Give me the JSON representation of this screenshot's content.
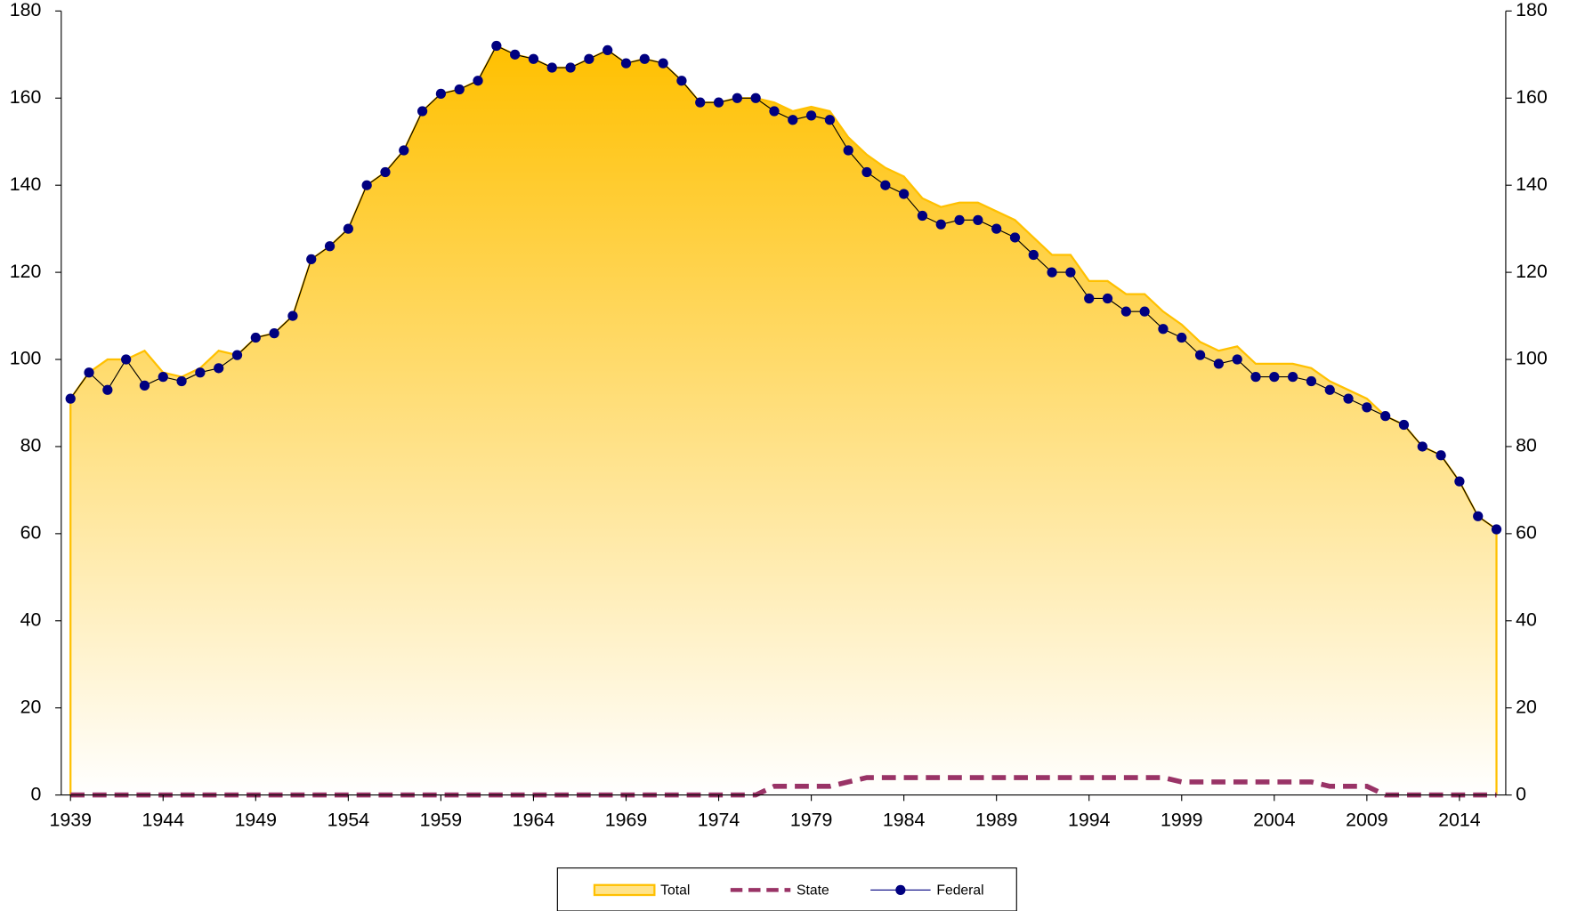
{
  "chart_data": {
    "type": "line",
    "x": [
      1939,
      1940,
      1941,
      1942,
      1943,
      1944,
      1945,
      1946,
      1947,
      1948,
      1949,
      1950,
      1951,
      1952,
      1953,
      1954,
      1955,
      1956,
      1957,
      1958,
      1959,
      1960,
      1961,
      1962,
      1963,
      1964,
      1965,
      1966,
      1967,
      1968,
      1969,
      1970,
      1971,
      1972,
      1973,
      1974,
      1975,
      1976,
      1977,
      1978,
      1979,
      1980,
      1981,
      1982,
      1983,
      1984,
      1985,
      1986,
      1987,
      1988,
      1989,
      1990,
      1991,
      1992,
      1993,
      1994,
      1995,
      1996,
      1997,
      1998,
      1999,
      2000,
      2001,
      2002,
      2003,
      2004,
      2005,
      2006,
      2007,
      2008,
      2009,
      2010,
      2011,
      2012,
      2013,
      2014,
      2015,
      2016
    ],
    "xlim": [
      1938.5,
      2016.5
    ],
    "xticks": [
      1939,
      1944,
      1949,
      1954,
      1959,
      1964,
      1969,
      1974,
      1979,
      1984,
      1989,
      1994,
      1999,
      2004,
      2009,
      2014
    ],
    "ylim": [
      0,
      180
    ],
    "yticks": [
      0,
      20,
      40,
      60,
      80,
      100,
      120,
      140,
      160,
      180
    ],
    "y2lim": [
      0,
      180
    ],
    "y2ticks": [
      0,
      20,
      40,
      60,
      80,
      100,
      120,
      140,
      160,
      180
    ],
    "legend": "bottom",
    "series": [
      {
        "name": "Total",
        "color": "#FFC000",
        "kind": "area",
        "values": [
          91,
          97,
          100,
          100,
          102,
          97,
          96,
          98,
          102,
          101,
          105,
          106,
          110,
          123,
          126,
          130,
          140,
          143,
          148,
          157,
          161,
          162,
          164,
          172,
          170,
          169,
          167,
          167,
          169,
          171,
          168,
          169,
          168,
          164,
          159,
          159,
          160,
          160,
          159,
          157,
          158,
          157,
          151,
          147,
          144,
          142,
          137,
          135,
          136,
          136,
          134,
          132,
          128,
          124,
          124,
          118,
          118,
          115,
          115,
          111,
          108,
          104,
          102,
          103,
          99,
          99,
          99,
          98,
          95,
          93,
          91,
          87,
          85,
          80,
          78,
          72,
          64,
          61
        ]
      },
      {
        "name": "State",
        "color": "#993366",
        "kind": "dashed",
        "values": [
          0,
          0,
          0,
          0,
          0,
          0,
          0,
          0,
          0,
          0,
          0,
          0,
          0,
          0,
          0,
          0,
          0,
          0,
          0,
          0,
          0,
          0,
          0,
          0,
          0,
          0,
          0,
          0,
          0,
          0,
          0,
          0,
          0,
          0,
          0,
          0,
          0,
          0,
          2,
          2,
          2,
          2,
          3,
          4,
          4,
          4,
          4,
          4,
          4,
          4,
          4,
          4,
          4,
          4,
          4,
          4,
          4,
          4,
          4,
          4,
          3,
          3,
          3,
          3,
          3,
          3,
          3,
          3,
          2,
          2,
          2,
          0,
          0,
          0,
          0,
          0,
          0,
          0
        ]
      },
      {
        "name": "Federal",
        "color": "#000080",
        "kind": "markers",
        "values": [
          91,
          97,
          93,
          100,
          94,
          96,
          95,
          97,
          98,
          101,
          105,
          106,
          110,
          123,
          126,
          130,
          140,
          143,
          148,
          157,
          161,
          162,
          164,
          172,
          170,
          169,
          167,
          167,
          169,
          171,
          168,
          169,
          168,
          164,
          159,
          159,
          160,
          160,
          157,
          155,
          156,
          155,
          148,
          143,
          140,
          138,
          133,
          131,
          132,
          132,
          130,
          128,
          124,
          120,
          120,
          114,
          114,
          111,
          111,
          107,
          105,
          101,
          99,
          100,
          96,
          96,
          96,
          95,
          93,
          91,
          89,
          87,
          85,
          80,
          78,
          72,
          64,
          61
        ]
      }
    ]
  }
}
